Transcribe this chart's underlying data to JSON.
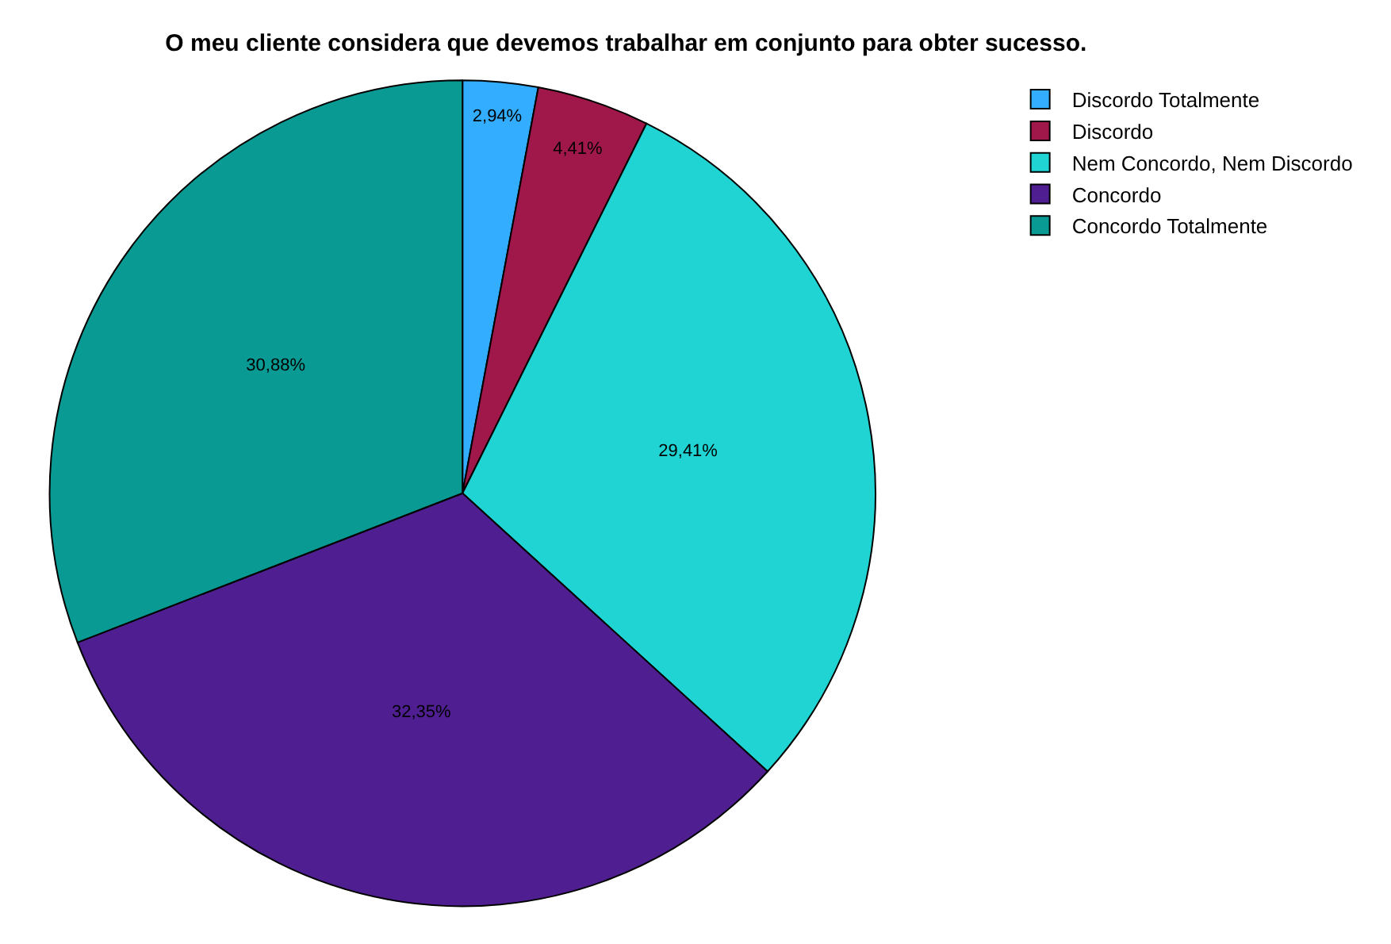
{
  "chart_data": {
    "type": "pie",
    "title": "O meu cliente considera que devemos trabalhar em conjunto para obter sucesso.",
    "categories": [
      "Discordo Totalmente",
      "Discordo",
      "Nem Concordo, Nem Discordo",
      "Concordo",
      "Concordo Totalmente"
    ],
    "values": [
      2.94,
      4.41,
      29.41,
      32.35,
      30.88
    ],
    "colors": [
      "#33adff",
      "#a0184a",
      "#21d4d4",
      "#4f1f91",
      "#0a9a94"
    ],
    "value_labels": [
      "2,94%",
      "4,41%",
      "29,41%",
      "32,35%",
      "30,88%"
    ],
    "legend": "top right"
  }
}
